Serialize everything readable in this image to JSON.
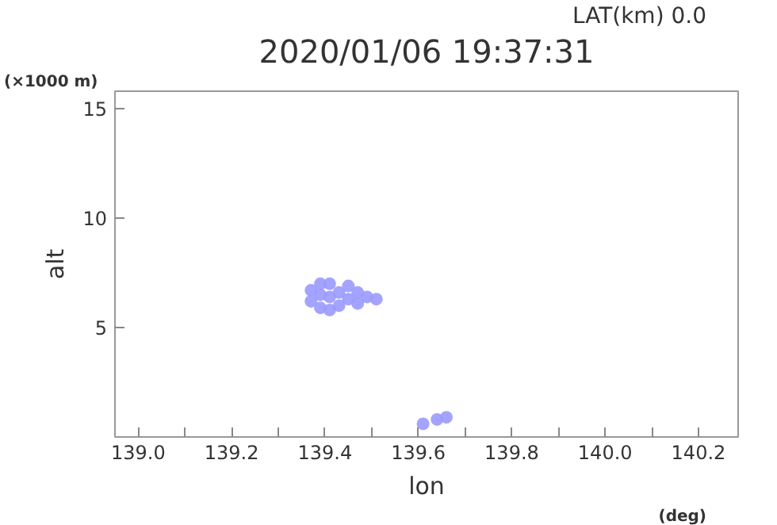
{
  "chart_data": {
    "type": "scatter",
    "title": "2020/01/06 19:37:31",
    "xlabel": "lon",
    "ylabel": "alt",
    "annotations": [
      "LAT(km) 0.0",
      "(×1000 m)",
      "(deg)"
    ],
    "series": [
      {
        "color": "#9a9aff",
        "x": [
          139.37,
          139.37,
          139.39,
          139.39,
          139.39,
          139.41,
          139.41,
          139.41,
          139.43,
          139.43,
          139.45,
          139.45,
          139.47,
          139.47,
          139.49,
          139.51,
          139.61,
          139.64,
          139.66
        ],
        "values": [
          6.2,
          6.7,
          5.9,
          6.5,
          7.0,
          5.8,
          6.4,
          7.0,
          6.0,
          6.6,
          6.3,
          6.9,
          6.1,
          6.6,
          6.4,
          6.3,
          0.6,
          0.8,
          0.9
        ]
      }
    ],
    "xlim": [
      138.95,
      140.285
    ],
    "ylim": [
      0,
      15.8
    ],
    "xticks": [
      {
        "value": 139.0,
        "label": "139.0"
      },
      {
        "value": 139.1,
        "label": null
      },
      {
        "value": 139.2,
        "label": "139.2"
      },
      {
        "value": 139.3,
        "label": null
      },
      {
        "value": 139.4,
        "label": "139.4"
      },
      {
        "value": 139.5,
        "label": null
      },
      {
        "value": 139.6,
        "label": "139.6"
      },
      {
        "value": 139.7,
        "label": null
      },
      {
        "value": 139.8,
        "label": "139.8"
      },
      {
        "value": 139.9,
        "label": null
      },
      {
        "value": 140.0,
        "label": "140.0"
      },
      {
        "value": 140.1,
        "label": null
      },
      {
        "value": 140.2,
        "label": "140.2"
      }
    ],
    "yticks": [
      5,
      10,
      15
    ],
    "grid": false,
    "marker": "circle"
  }
}
